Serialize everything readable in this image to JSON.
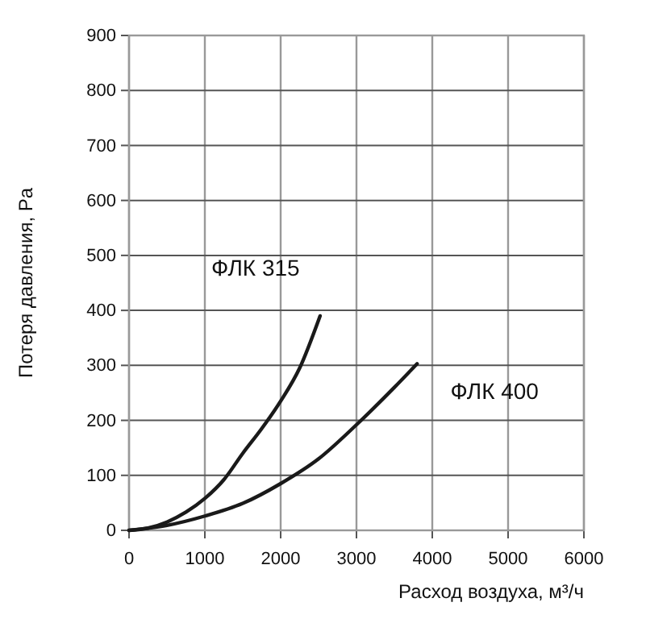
{
  "chart_data": {
    "type": "line",
    "xlabel": "Расход воздуха, м³/ч",
    "ylabel": "Потеря давления, Pa",
    "xlim": [
      0,
      6000
    ],
    "xticks": [
      0,
      1000,
      2000,
      3000,
      4000,
      5000,
      6000
    ],
    "ylim": [
      0,
      900
    ],
    "yticks": [
      0,
      100,
      200,
      300,
      400,
      500,
      600,
      700,
      800,
      900
    ],
    "grid": true,
    "legend": false,
    "marker": "none",
    "line_style": "solid",
    "series": [
      {
        "name": "ФЛК 315",
        "color": "#1a1a1a",
        "x": [
          0,
          250,
          500,
          750,
          1000,
          1250,
          1500,
          1750,
          2000,
          2250,
          2520
        ],
        "values": [
          0,
          4,
          15,
          33,
          58,
          92,
          140,
          185,
          235,
          295,
          390
        ]
      },
      {
        "name": "ФЛК 400",
        "color": "#1a1a1a",
        "x": [
          0,
          500,
          1000,
          1500,
          2000,
          2500,
          3000,
          3500,
          3800
        ],
        "values": [
          0,
          9,
          26,
          49,
          85,
          130,
          192,
          260,
          303
        ]
      }
    ]
  }
}
